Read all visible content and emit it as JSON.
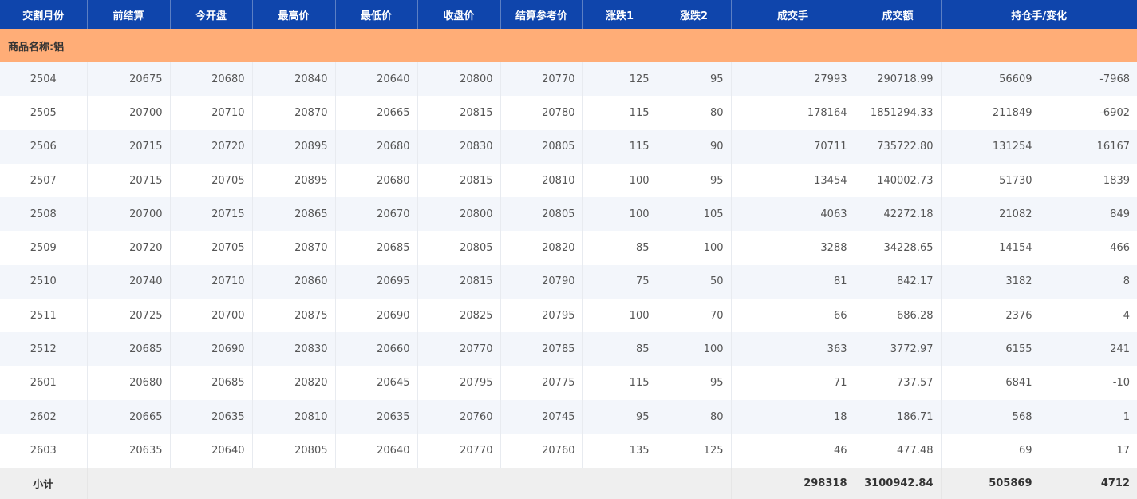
{
  "colors": {
    "header_bg": "#0f45ac",
    "group_bg": "#ffad77",
    "row_alt_bg": "#f3f6fb",
    "subtotal_bg": "#efefef"
  },
  "headers": [
    "交割月份",
    "前结算",
    "今开盘",
    "最高价",
    "最低价",
    "收盘价",
    "结算参考价",
    "涨跌1",
    "涨跌2",
    "成交手",
    "成交额",
    "持仓手/变化"
  ],
  "group_label": "商品名称:铝",
  "rows": [
    [
      "2504",
      "20675",
      "20680",
      "20840",
      "20640",
      "20800",
      "20770",
      "125",
      "95",
      "27993",
      "290718.99",
      "56609",
      "-7968"
    ],
    [
      "2505",
      "20700",
      "20710",
      "20870",
      "20665",
      "20815",
      "20780",
      "115",
      "80",
      "178164",
      "1851294.33",
      "211849",
      "-6902"
    ],
    [
      "2506",
      "20715",
      "20720",
      "20895",
      "20680",
      "20830",
      "20805",
      "115",
      "90",
      "70711",
      "735722.80",
      "131254",
      "16167"
    ],
    [
      "2507",
      "20715",
      "20705",
      "20895",
      "20680",
      "20815",
      "20810",
      "100",
      "95",
      "13454",
      "140002.73",
      "51730",
      "1839"
    ],
    [
      "2508",
      "20700",
      "20715",
      "20865",
      "20670",
      "20800",
      "20805",
      "100",
      "105",
      "4063",
      "42272.18",
      "21082",
      "849"
    ],
    [
      "2509",
      "20720",
      "20705",
      "20870",
      "20685",
      "20805",
      "20820",
      "85",
      "100",
      "3288",
      "34228.65",
      "14154",
      "466"
    ],
    [
      "2510",
      "20740",
      "20710",
      "20860",
      "20695",
      "20815",
      "20790",
      "75",
      "50",
      "81",
      "842.17",
      "3182",
      "8"
    ],
    [
      "2511",
      "20725",
      "20700",
      "20875",
      "20690",
      "20825",
      "20795",
      "100",
      "70",
      "66",
      "686.28",
      "2376",
      "4"
    ],
    [
      "2512",
      "20685",
      "20690",
      "20830",
      "20660",
      "20770",
      "20785",
      "85",
      "100",
      "363",
      "3772.97",
      "6155",
      "241"
    ],
    [
      "2601",
      "20680",
      "20685",
      "20820",
      "20645",
      "20795",
      "20775",
      "115",
      "95",
      "71",
      "737.57",
      "6841",
      "-10"
    ],
    [
      "2602",
      "20665",
      "20635",
      "20810",
      "20635",
      "20760",
      "20745",
      "95",
      "80",
      "18",
      "186.71",
      "568",
      "1"
    ],
    [
      "2603",
      "20635",
      "20640",
      "20805",
      "20640",
      "20770",
      "20760",
      "135",
      "125",
      "46",
      "477.48",
      "69",
      "17"
    ]
  ],
  "subtotal": {
    "label": "小计",
    "volume": "298318",
    "turnover": "3100942.84",
    "open_interest": "505869",
    "oi_change": "4712"
  }
}
